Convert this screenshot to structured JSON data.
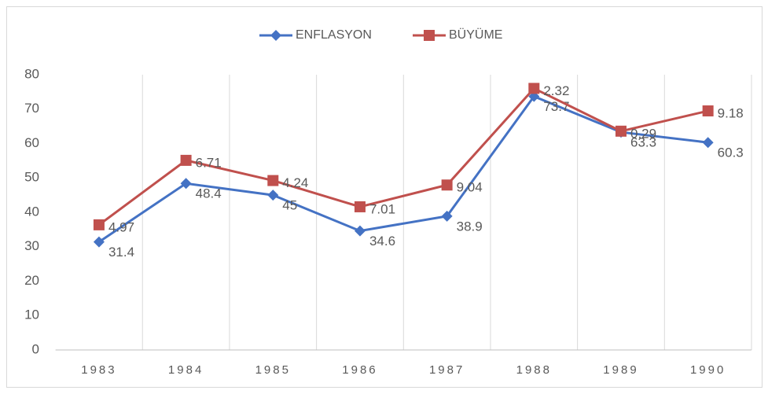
{
  "chart_data": {
    "type": "line",
    "stacked": true,
    "categories": [
      "1983",
      "1984",
      "1985",
      "1986",
      "1987",
      "1988",
      "1989",
      "1990"
    ],
    "series": [
      {
        "name": "ENFLASYON",
        "color": "#4472c4",
        "marker": "diamond",
        "values": [
          31.4,
          48.4,
          45,
          34.6,
          38.9,
          73.7,
          63.3,
          60.3
        ]
      },
      {
        "name": "BÜYÜME",
        "color": "#c0504d",
        "marker": "square",
        "values": [
          4.97,
          6.71,
          4.24,
          7.01,
          9.04,
          2.32,
          0.29,
          9.18
        ]
      }
    ],
    "ylim": [
      0,
      80
    ],
    "yticks": [
      0,
      10,
      20,
      30,
      40,
      50,
      60,
      70,
      80
    ],
    "legend": "top",
    "grid": "vertical"
  }
}
